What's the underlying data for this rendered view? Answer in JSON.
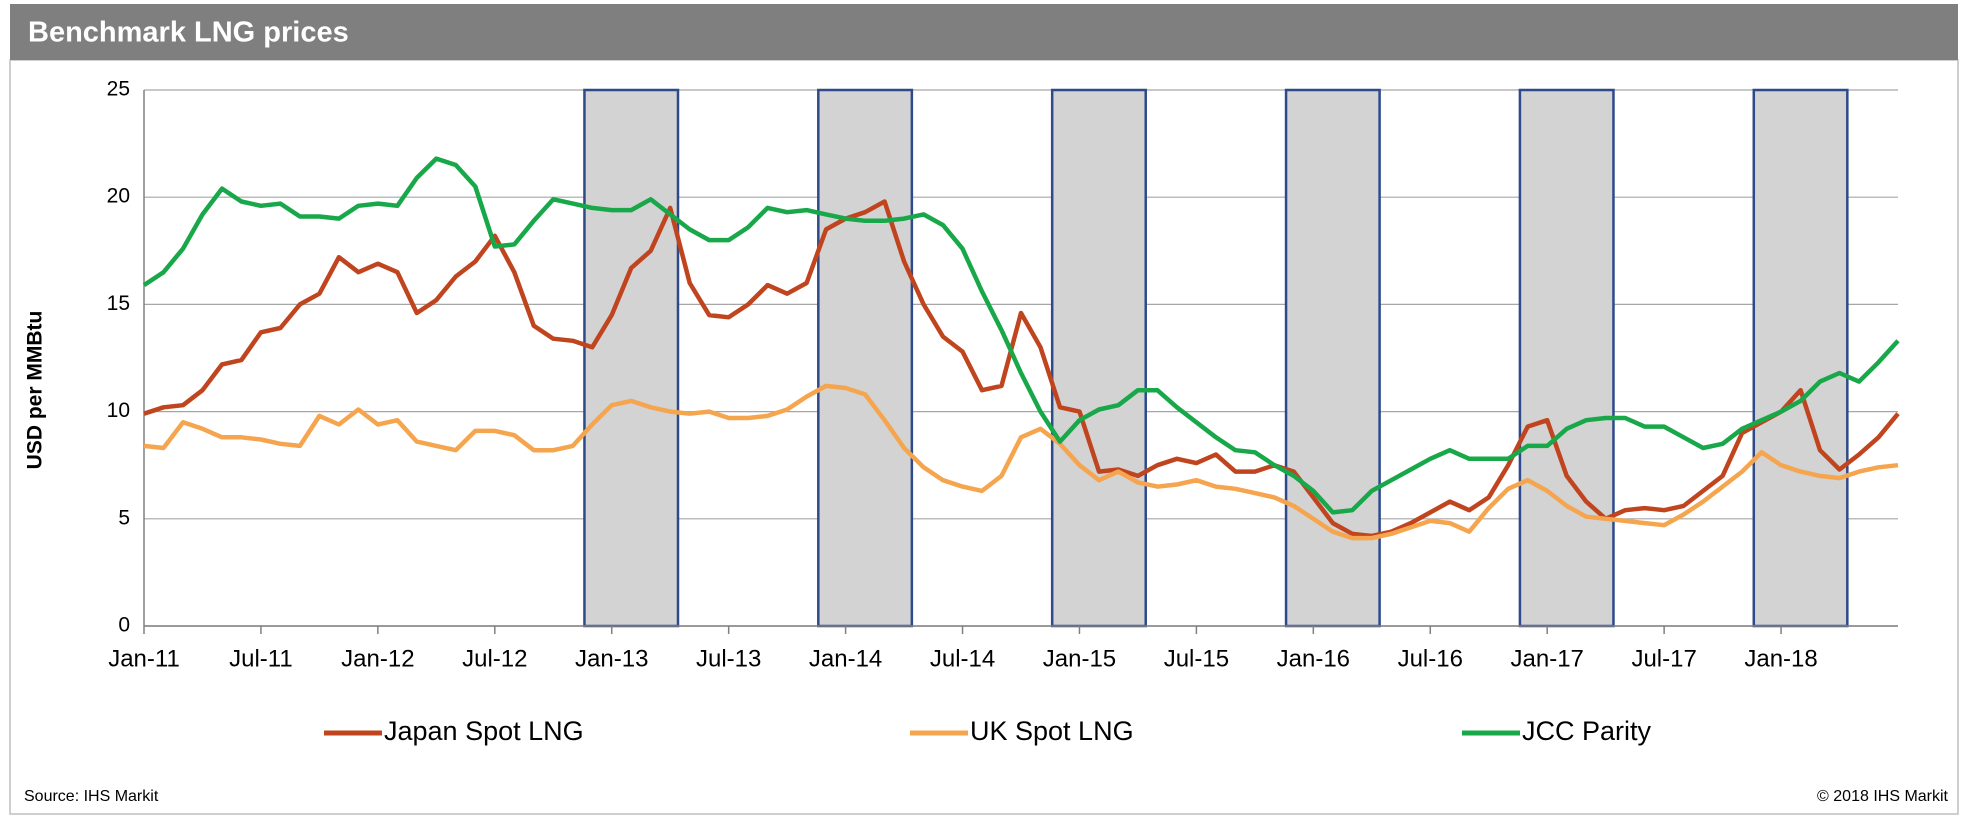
{
  "header": {
    "title": "Benchmark LNG prices"
  },
  "footer": {
    "source": "Source: IHS Markit",
    "copyright": "© 2018 IHS Markit"
  },
  "chart_data": {
    "type": "line",
    "ylabel": "USD per MMBtu",
    "categories": [
      "Jan-11",
      null,
      null,
      null,
      null,
      null,
      "Jul-11",
      null,
      null,
      null,
      null,
      null,
      "Jan-12",
      null,
      null,
      null,
      null,
      null,
      "Jul-12",
      null,
      null,
      null,
      null,
      null,
      "Jan-13",
      null,
      null,
      null,
      null,
      null,
      "Jul-13",
      null,
      null,
      null,
      null,
      null,
      "Jan-14",
      null,
      null,
      null,
      null,
      null,
      "Jul-14",
      null,
      null,
      null,
      null,
      null,
      "Jan-15",
      null,
      null,
      null,
      null,
      null,
      "Jul-15",
      null,
      null,
      null,
      null,
      null,
      "Jan-16",
      null,
      null,
      null,
      null,
      null,
      "Jul-16",
      null,
      null,
      null,
      null,
      null,
      "Jan-17",
      null,
      null,
      null,
      null,
      null,
      "Jul-17",
      null,
      null,
      null,
      null,
      null,
      "Jan-18",
      null,
      null,
      null,
      null,
      null,
      null
    ],
    "series": [
      {
        "name": "Japan Spot LNG",
        "color": "#c0451f",
        "values": [
          9.9,
          10.2,
          10.3,
          11,
          12.2,
          12.4,
          13.7,
          13.9,
          15,
          15.5,
          17.2,
          16.5,
          16.9,
          16.5,
          14.6,
          15.2,
          16.3,
          17,
          18.2,
          16.5,
          14,
          13.4,
          13.3,
          13,
          14.5,
          16.7,
          17.5,
          19.5,
          16,
          14.5,
          14.4,
          15,
          15.9,
          15.5,
          16,
          18.5,
          19,
          19.3,
          19.8,
          17,
          15,
          13.5,
          12.8,
          11,
          11.2,
          14.6,
          13,
          10.2,
          10,
          7.2,
          7.3,
          7,
          7.5,
          7.8,
          7.6,
          8,
          7.2,
          7.2,
          7.5,
          7.2,
          6,
          4.8,
          4.3,
          4.2,
          4.4,
          4.8,
          5.3,
          5.8,
          5.4,
          6,
          7.5,
          9.3,
          9.6,
          7,
          5.8,
          5,
          5.4,
          5.5,
          5.4,
          5.6,
          6.3,
          7,
          9,
          9.5,
          10,
          11,
          8.2,
          7.3,
          8,
          8.8,
          9.9
        ]
      },
      {
        "name": "UK Spot LNG",
        "color": "#f6a54f",
        "values": [
          8.4,
          8.3,
          9.5,
          9.2,
          8.8,
          8.8,
          8.7,
          8.5,
          8.4,
          9.8,
          9.4,
          10.1,
          9.4,
          9.6,
          8.6,
          8.4,
          8.2,
          9.1,
          9.1,
          8.9,
          8.2,
          8.2,
          8.4,
          9.4,
          10.3,
          10.5,
          10.2,
          10,
          9.9,
          10,
          9.7,
          9.7,
          9.8,
          10.1,
          10.7,
          11.2,
          11.1,
          10.8,
          9.6,
          8.3,
          7.4,
          6.8,
          6.5,
          6.3,
          7,
          8.8,
          9.2,
          8.5,
          7.5,
          6.8,
          7.2,
          6.7,
          6.5,
          6.6,
          6.8,
          6.5,
          6.4,
          6.2,
          6,
          5.6,
          5,
          4.4,
          4.1,
          4.1,
          4.3,
          4.6,
          4.9,
          4.8,
          4.4,
          5.5,
          6.4,
          6.8,
          6.3,
          5.6,
          5.1,
          5,
          4.9,
          4.8,
          4.7,
          5.2,
          5.8,
          6.5,
          7.2,
          8.1,
          7.5,
          7.2,
          7,
          6.9,
          7.2,
          7.4,
          7.5
        ]
      },
      {
        "name": "JCC Parity",
        "color": "#18a84a",
        "values": [
          15.9,
          16.5,
          17.6,
          19.2,
          20.4,
          19.8,
          19.6,
          19.7,
          19.1,
          19.1,
          19,
          19.6,
          19.7,
          19.6,
          20.9,
          21.8,
          21.5,
          20.5,
          17.7,
          17.8,
          18.9,
          19.9,
          19.7,
          19.5,
          19.4,
          19.4,
          19.9,
          19.2,
          18.5,
          18,
          18,
          18.6,
          19.5,
          19.3,
          19.4,
          19.2,
          19,
          18.9,
          18.9,
          19,
          19.2,
          18.7,
          17.6,
          15.6,
          13.8,
          11.8,
          10,
          8.6,
          9.6,
          10.1,
          10.3,
          11,
          11,
          10.2,
          9.5,
          8.8,
          8.2,
          8.1,
          7.5,
          7,
          6.3,
          5.3,
          5.4,
          6.3,
          6.8,
          7.3,
          7.8,
          8.2,
          7.8,
          7.8,
          7.8,
          8.4,
          8.4,
          9.2,
          9.6,
          9.7,
          9.7,
          9.3,
          9.3,
          8.8,
          8.3,
          8.5,
          9.2,
          9.6,
          10,
          10.5,
          11.4,
          11.8,
          11.4,
          12.3,
          13.3
        ]
      }
    ],
    "ylim": [
      0,
      25
    ],
    "yticks": [
      0,
      5,
      10,
      15,
      20,
      25
    ],
    "grid": true,
    "legend": "bottom"
  }
}
